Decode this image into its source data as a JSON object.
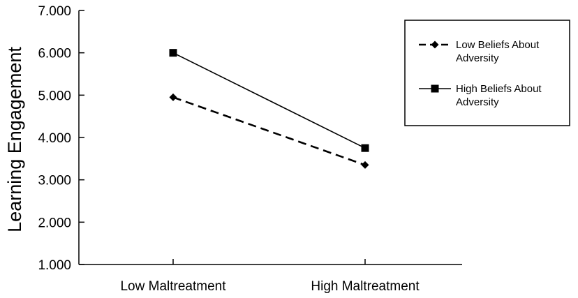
{
  "chart_data": {
    "type": "line",
    "title": "",
    "xlabel": "",
    "ylabel": "Learning  Engagement",
    "categories": [
      "Low Maltreatment",
      "High Maltreatment"
    ],
    "y_ticks": [
      "1.000",
      "2.000",
      "3.000",
      "4.000",
      "5.000",
      "6.000",
      "7.000"
    ],
    "ylim": [
      1,
      7
    ],
    "grid": false,
    "legend_position": "top-right",
    "series": [
      {
        "name": "Low Beliefs About Adversity",
        "name_lines": [
          "Low Beliefs About",
          "Adversity"
        ],
        "values": [
          4.95,
          3.35
        ],
        "line_style": "dashed",
        "marker": "diamond",
        "color": "#000000"
      },
      {
        "name": "High Beliefs About Adversity",
        "name_lines": [
          "High Beliefs About",
          "Adversity"
        ],
        "values": [
          6.0,
          3.75
        ],
        "line_style": "solid",
        "marker": "square",
        "color": "#000000"
      }
    ]
  }
}
